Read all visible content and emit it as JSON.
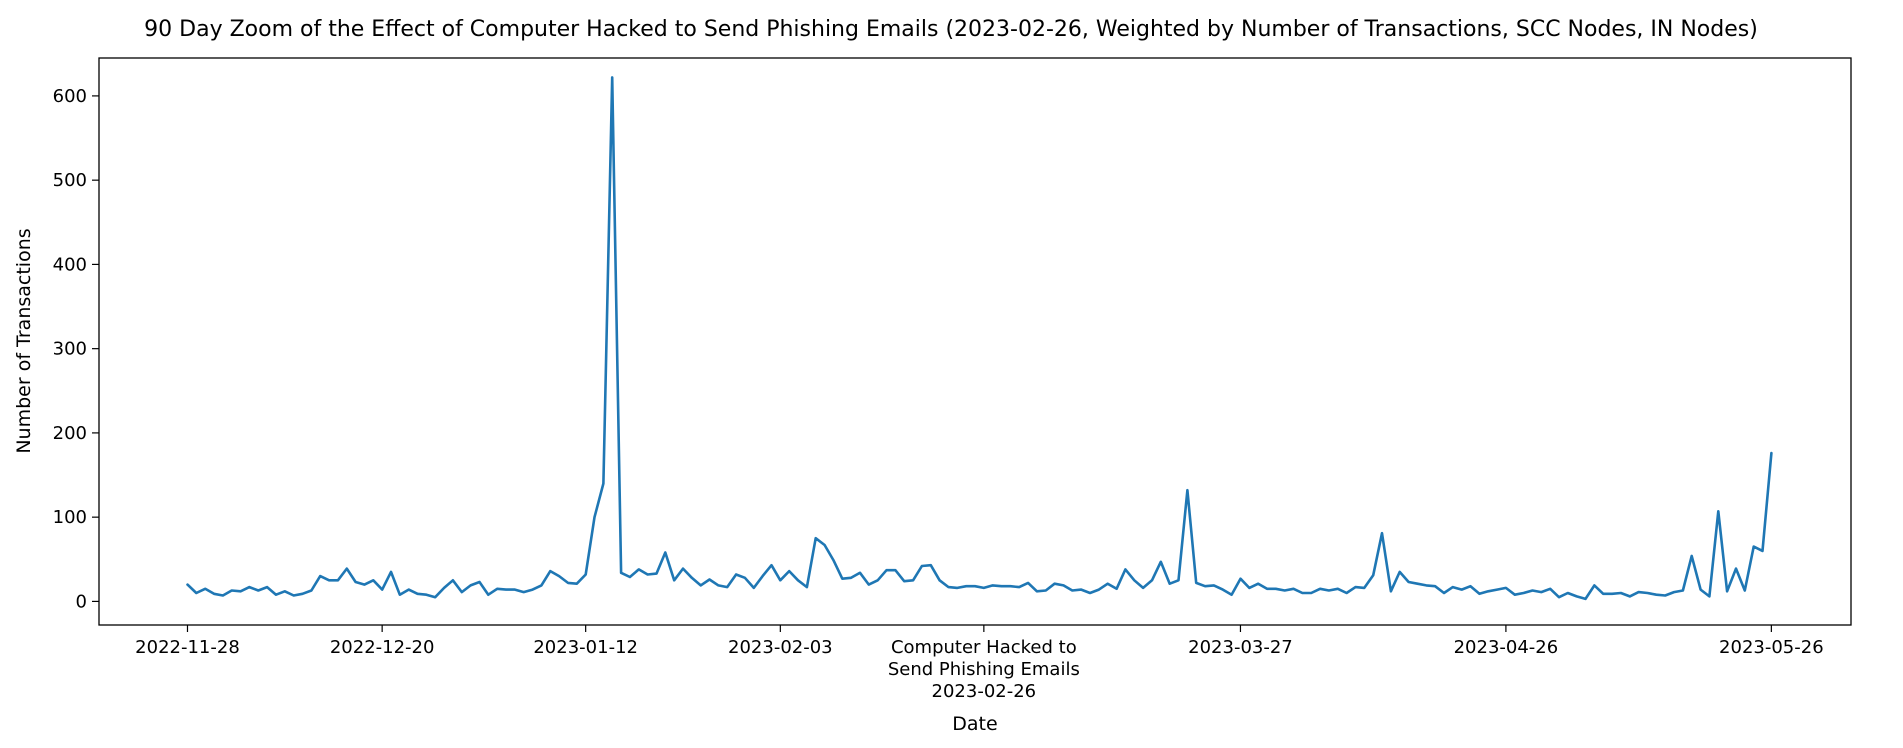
{
  "chart_data": {
    "type": "line",
    "title": "90 Day Zoom of the Effect of Computer Hacked to Send Phishing Emails (2023-02-26, Weighted by Number of Transactions, SCC Nodes, IN Nodes)",
    "xlabel": "Date",
    "ylabel": "Number of Transactions",
    "xlim": [
      "2022-11-18",
      "2023-06-04"
    ],
    "ylim": [
      -28,
      645
    ],
    "x_ticks": [
      "2022-11-28",
      "2022-12-20",
      "2023-01-12",
      "2023-02-03",
      "2023-03-27",
      "2023-04-26",
      "2023-05-26"
    ],
    "y_ticks": [
      0,
      100,
      200,
      300,
      400,
      500,
      600
    ],
    "event": {
      "date": "2023-02-26",
      "label_lines": [
        "Computer Hacked to",
        "Send Phishing Emails",
        "2023-02-26"
      ]
    },
    "grid": false,
    "legend": "none",
    "color": "#1f77b4",
    "series": [
      {
        "x": [
          "2022-11-28",
          "2022-11-29",
          "2022-11-30",
          "2022-12-01",
          "2022-12-02",
          "2022-12-03",
          "2022-12-04",
          "2022-12-05",
          "2022-12-06",
          "2022-12-07",
          "2022-12-08",
          "2022-12-09",
          "2022-12-10",
          "2022-12-11",
          "2022-12-12",
          "2022-12-13",
          "2022-12-14",
          "2022-12-15",
          "2022-12-16",
          "2022-12-17",
          "2022-12-18",
          "2022-12-19",
          "2022-12-20",
          "2022-12-21",
          "2022-12-22",
          "2022-12-23",
          "2022-12-24",
          "2022-12-25",
          "2022-12-26",
          "2022-12-27",
          "2022-12-28",
          "2022-12-29",
          "2022-12-30",
          "2022-12-31",
          "2023-01-01",
          "2023-01-02",
          "2023-01-03",
          "2023-01-04",
          "2023-01-05",
          "2023-01-06",
          "2023-01-07",
          "2023-01-08",
          "2023-01-09",
          "2023-01-10",
          "2023-01-11",
          "2023-01-12",
          "2023-01-13",
          "2023-01-14",
          "2023-01-15",
          "2023-01-16",
          "2023-01-17",
          "2023-01-18",
          "2023-01-19",
          "2023-01-20",
          "2023-01-21",
          "2023-01-22",
          "2023-01-23",
          "2023-01-24",
          "2023-01-25",
          "2023-01-26",
          "2023-01-27",
          "2023-01-28",
          "2023-01-29",
          "2023-01-30",
          "2023-01-31",
          "2023-02-01",
          "2023-02-02",
          "2023-02-03",
          "2023-02-04",
          "2023-02-05",
          "2023-02-06",
          "2023-02-07",
          "2023-02-08",
          "2023-02-09",
          "2023-02-10",
          "2023-02-11",
          "2023-02-12",
          "2023-02-13",
          "2023-02-14",
          "2023-02-15",
          "2023-02-16",
          "2023-02-17",
          "2023-02-18",
          "2023-02-19",
          "2023-02-20",
          "2023-02-21",
          "2023-02-22",
          "2023-02-23",
          "2023-02-24",
          "2023-02-25",
          "2023-02-26",
          "2023-02-27",
          "2023-02-28",
          "2023-03-01",
          "2023-03-02",
          "2023-03-03",
          "2023-03-04",
          "2023-03-05",
          "2023-03-06",
          "2023-03-07",
          "2023-03-08",
          "2023-03-09",
          "2023-03-10",
          "2023-03-11",
          "2023-03-12",
          "2023-03-13",
          "2023-03-14",
          "2023-03-15",
          "2023-03-16",
          "2023-03-17",
          "2023-03-18",
          "2023-03-19",
          "2023-03-20",
          "2023-03-21",
          "2023-03-22",
          "2023-03-23",
          "2023-03-24",
          "2023-03-25",
          "2023-03-26",
          "2023-03-27",
          "2023-03-28",
          "2023-03-29",
          "2023-03-30",
          "2023-03-31",
          "2023-04-01",
          "2023-04-02",
          "2023-04-03",
          "2023-04-04",
          "2023-04-05",
          "2023-04-06",
          "2023-04-07",
          "2023-04-08",
          "2023-04-09",
          "2023-04-10",
          "2023-04-11",
          "2023-04-12",
          "2023-04-13",
          "2023-04-14",
          "2023-04-15",
          "2023-04-16",
          "2023-04-17",
          "2023-04-18",
          "2023-04-19",
          "2023-04-20",
          "2023-04-21",
          "2023-04-22",
          "2023-04-23",
          "2023-04-24",
          "2023-04-25",
          "2023-04-26",
          "2023-04-27",
          "2023-04-28",
          "2023-04-29",
          "2023-04-30",
          "2023-05-01",
          "2023-05-02",
          "2023-05-03",
          "2023-05-04",
          "2023-05-05",
          "2023-05-06",
          "2023-05-07",
          "2023-05-08",
          "2023-05-09",
          "2023-05-10",
          "2023-05-11",
          "2023-05-12",
          "2023-05-13",
          "2023-05-14",
          "2023-05-15",
          "2023-05-16",
          "2023-05-17",
          "2023-05-18",
          "2023-05-19",
          "2023-05-20",
          "2023-05-21",
          "2023-05-22",
          "2023-05-23",
          "2023-05-24",
          "2023-05-25",
          "2023-05-26"
        ],
        "values": [
          20,
          10,
          15,
          9,
          7,
          13,
          12,
          17,
          13,
          17,
          8,
          12,
          7,
          9,
          13,
          30,
          25,
          25,
          39,
          23,
          20,
          25,
          14,
          35,
          8,
          14,
          9,
          8,
          5,
          16,
          25,
          11,
          19,
          23,
          8,
          15,
          14,
          14,
          11,
          14,
          19,
          36,
          30,
          22,
          21,
          32,
          100,
          140,
          622,
          34,
          29,
          38,
          32,
          33,
          58,
          25,
          39,
          28,
          19,
          26,
          19,
          17,
          32,
          28,
          16,
          30,
          43,
          25,
          36,
          25,
          17,
          75,
          67,
          49,
          27,
          28,
          34,
          20,
          25,
          37,
          37,
          24,
          25,
          42,
          43,
          25,
          17,
          16,
          18,
          18,
          16,
          19,
          18,
          18,
          17,
          22,
          12,
          13,
          21,
          19,
          13,
          14,
          10,
          14,
          21,
          15,
          38,
          25,
          16,
          25,
          47,
          21,
          25,
          132,
          22,
          18,
          19,
          14,
          8,
          27,
          16,
          21,
          15,
          15,
          13,
          15,
          10,
          10,
          15,
          13,
          15,
          10,
          17,
          16,
          31,
          81,
          12,
          35,
          23,
          21,
          19,
          18,
          10,
          17,
          14,
          18,
          9,
          12,
          14,
          16,
          8,
          10,
          13,
          11,
          15,
          5,
          10,
          6,
          3,
          19,
          9,
          9,
          10,
          6,
          11,
          10,
          8,
          7,
          11,
          13,
          54,
          14,
          6,
          107,
          12,
          39,
          13,
          65,
          60,
          176
        ]
      }
    ]
  }
}
